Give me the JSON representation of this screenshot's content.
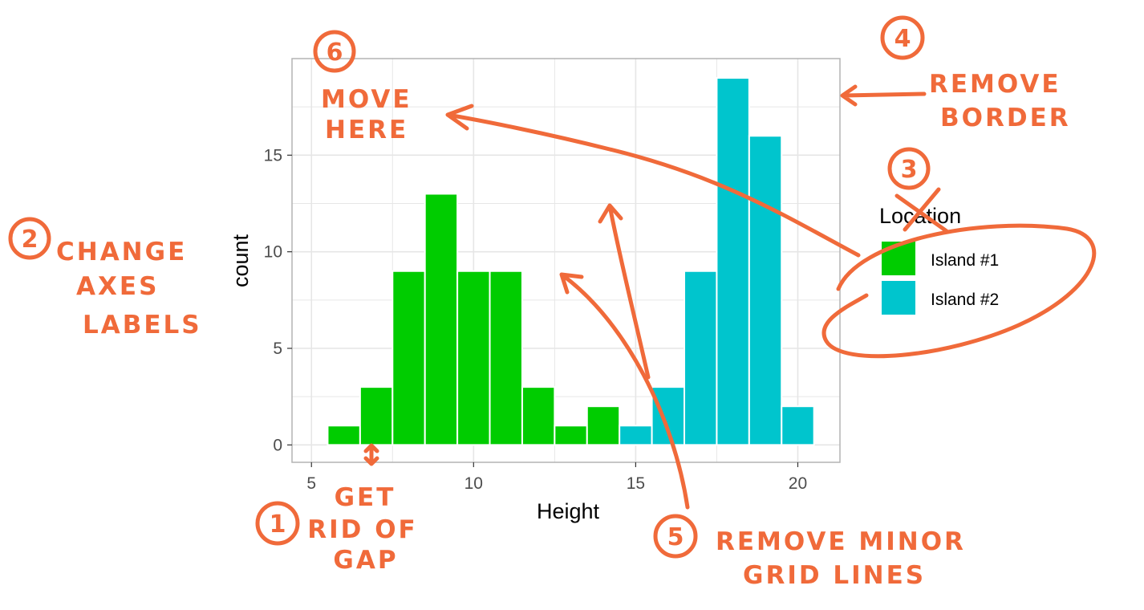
{
  "chart_data": {
    "type": "bar",
    "xlabel": "Height",
    "ylabel": "count",
    "xlim": [
      4.4,
      21.3
    ],
    "ylim": [
      -0.9,
      20
    ],
    "x_ticks": [
      5,
      10,
      15,
      20
    ],
    "y_ticks": [
      0,
      5,
      10,
      15
    ],
    "bin_width": 1,
    "legend": {
      "title": "Location",
      "position": "right"
    },
    "grid": {
      "major": true,
      "minor": true
    },
    "series": [
      {
        "name": "Island #1",
        "color": "#00cc00",
        "bins": [
          {
            "x": 6,
            "count": 1
          },
          {
            "x": 7,
            "count": 3
          },
          {
            "x": 8,
            "count": 9
          },
          {
            "x": 9,
            "count": 13
          },
          {
            "x": 10,
            "count": 9
          },
          {
            "x": 11,
            "count": 9
          },
          {
            "x": 12,
            "count": 3
          },
          {
            "x": 13,
            "count": 1
          },
          {
            "x": 14,
            "count": 2
          }
        ]
      },
      {
        "name": "Island #2",
        "color": "#00c5cd",
        "bins": [
          {
            "x": 15,
            "count": 1
          },
          {
            "x": 16,
            "count": 3
          },
          {
            "x": 17,
            "count": 9
          },
          {
            "x": 18,
            "count": 19
          },
          {
            "x": 19,
            "count": 16
          },
          {
            "x": 20,
            "count": 2
          }
        ]
      }
    ]
  },
  "annotations": {
    "n1": "1",
    "t1a": "GET",
    "t1b": "RID OF",
    "t1c": "GAP",
    "n2": "2",
    "t2a": "CHANGE",
    "t2b": "AXES",
    "t2c": "LABELS",
    "n3": "3",
    "n4": "4",
    "t4a": "REMOVE",
    "t4b": "BORDER",
    "n5": "5",
    "t5a": "REMOVE MINOR",
    "t5b": "GRID LINES",
    "n6": "6",
    "t6a": "MOVE",
    "t6b": "HERE"
  },
  "colors": {
    "annotation_ink": "#f06a3a",
    "grid": "#e6e6e6",
    "panel_border": "#b3b3b3"
  }
}
